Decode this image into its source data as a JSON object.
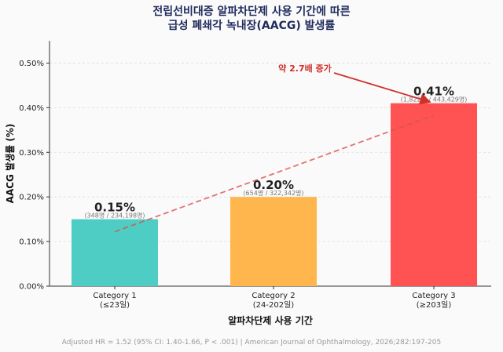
{
  "chart_data": {
    "type": "bar",
    "title": [
      "전립선비대증 알파차단제 사용 기간에 따른",
      "급성 폐쇄각 녹내장(AACG) 발생률"
    ],
    "xlabel": "알파차단제 사용 기간",
    "ylabel": "AACG 발생률 (%)",
    "ylim": [
      0,
      0.55
    ],
    "yticks": [
      "0.00%",
      "0.10%",
      "0.20%",
      "0.30%",
      "0.40%",
      "0.50%"
    ],
    "grid": true,
    "categories": [
      {
        "name": "Category 1",
        "sub": "(≤23일)"
      },
      {
        "name": "Category 2",
        "sub": "(24-202일)"
      },
      {
        "name": "Category 3",
        "sub": "(≥203일)"
      }
    ],
    "values": [
      0.15,
      0.2,
      0.41
    ],
    "value_labels": [
      "0.15%",
      "0.20%",
      "0.41%"
    ],
    "count_labels": [
      "(348명 / 234,198명)",
      "(654명 / 322,342명)",
      "(1,822명 / 443,429명)"
    ],
    "colors": [
      "#4ecdc4",
      "#ffb74d",
      "#ff5252"
    ],
    "trend_line": {
      "style": "dashed",
      "color": "#d9534f",
      "start": 0.122,
      "end": 0.383
    },
    "annotation": {
      "text": "약 2.7배 증가",
      "color": "#d0302a"
    },
    "footnote": "Adjusted HR = 1.52 (95% CI: 1.40-1.66, P < .001)  |  American Journal of Ophthalmology, 2026;282:197-205"
  }
}
